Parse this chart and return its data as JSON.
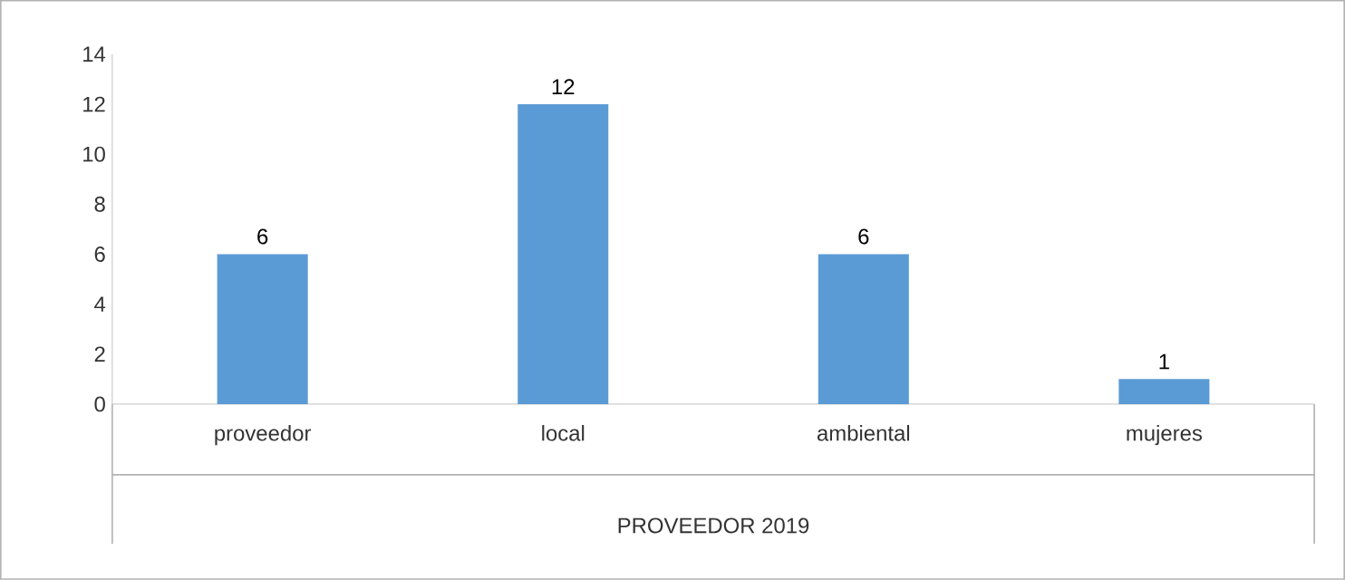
{
  "chart_data": {
    "type": "bar",
    "xlabel": "PROVEEDOR 2019",
    "categories": [
      "proveedor",
      "local",
      "ambiental",
      "mujeres"
    ],
    "values": [
      6,
      12,
      6,
      1
    ],
    "color": "#5b9bd5",
    "ylim": [
      0,
      14
    ],
    "yticks": [
      0,
      2,
      4,
      6,
      8,
      10,
      12,
      14
    ],
    "data_labels": true,
    "grid": false
  }
}
